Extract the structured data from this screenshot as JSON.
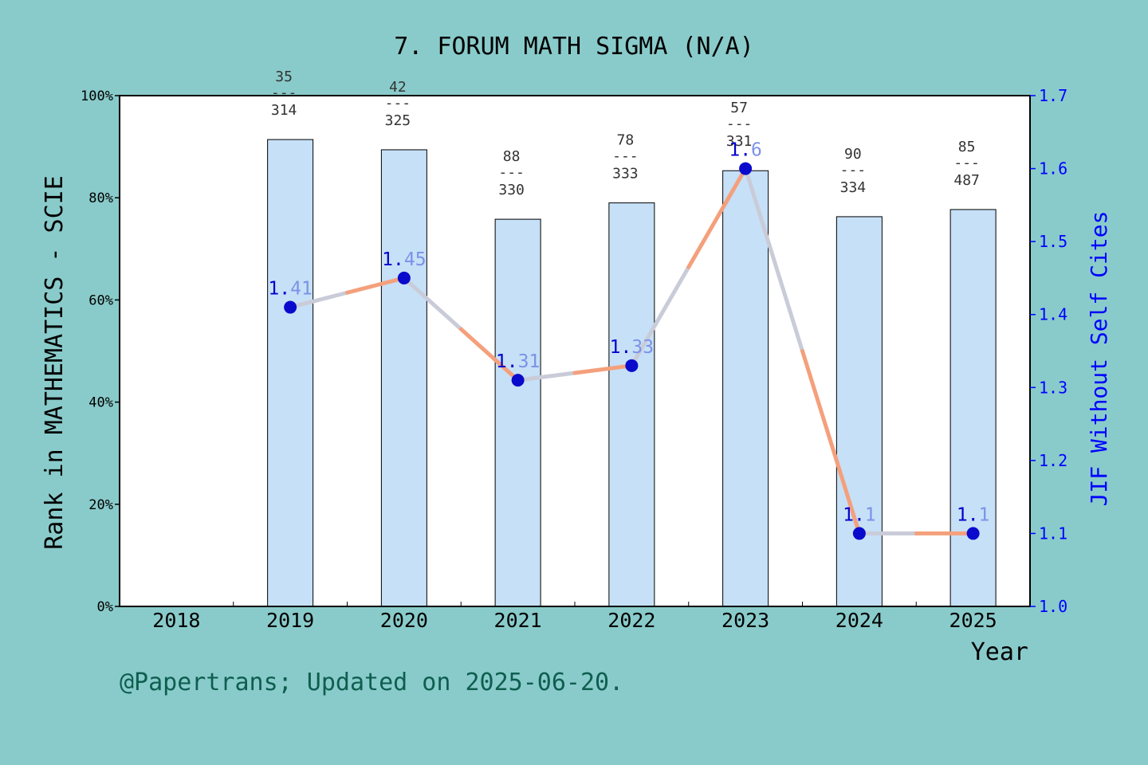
{
  "chart_data": {
    "type": "bar",
    "title": "7. FORUM MATH SIGMA (N/A)",
    "xlabel": "Year",
    "ylabel_left": "Rank in MATHEMATICS - SCIE",
    "ylabel_right": "JIF Without Self Cites",
    "categories": [
      "2018",
      "2019",
      "2020",
      "2021",
      "2022",
      "2023",
      "2024",
      "2025"
    ],
    "left_axis": {
      "ylim": [
        0,
        100
      ],
      "ticks": [
        0,
        20,
        40,
        60,
        80,
        100
      ],
      "tick_labels": [
        "0%",
        "20%",
        "40%",
        "60%",
        "80%",
        "100%"
      ]
    },
    "right_axis": {
      "ylim": [
        1.0,
        1.7
      ],
      "ticks": [
        1.0,
        1.1,
        1.2,
        1.3,
        1.4,
        1.5,
        1.6,
        1.7
      ],
      "tick_labels": [
        "1.0",
        "1.1",
        "1.2",
        "1.3",
        "1.4",
        "1.5",
        "1.6",
        "1.7"
      ]
    },
    "series": [
      {
        "kind": "bar",
        "axis": "left",
        "values": [
          null,
          91.4,
          89.4,
          75.8,
          79.0,
          85.3,
          76.3,
          77.7
        ],
        "rank": [
          null,
          "35",
          "42",
          "88",
          "78",
          "57",
          "90",
          "85"
        ],
        "total": [
          null,
          "314",
          "325",
          "330",
          "333",
          "331",
          "334",
          "487"
        ],
        "separator": "---"
      },
      {
        "kind": "line",
        "axis": "right",
        "values": [
          null,
          1.41,
          1.45,
          1.31,
          1.33,
          1.6,
          1.1,
          1.1
        ],
        "labels": [
          null,
          "1.41",
          "1.45",
          "1.31",
          "1.33",
          "1.6",
          "1.1",
          "1.1"
        ]
      }
    ],
    "grid": false,
    "legend": "none"
  },
  "footer": "@Papertrans; Updated on 2025-06-20.",
  "colors": {
    "background": "#89CBCA",
    "bar_fill": "#C6E0F7",
    "line": "#F4A07C",
    "line_faded": "#C9CCD8",
    "marker": "#0A0ACC",
    "right_axis": "#0000FF",
    "label_dark": "#0000CC",
    "label_light": "#7C92E8",
    "footer_text": "#0E5E50"
  }
}
